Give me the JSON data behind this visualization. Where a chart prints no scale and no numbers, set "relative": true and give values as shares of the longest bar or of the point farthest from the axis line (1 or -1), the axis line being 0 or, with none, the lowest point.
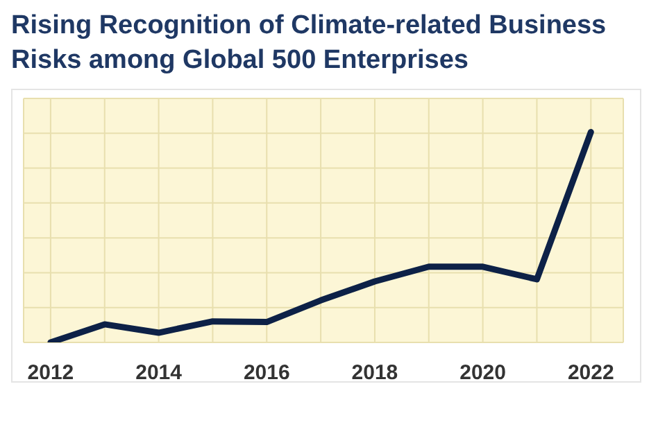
{
  "chart_data": {
    "type": "line",
    "title": "Rising Recognition of Climate-related Business Risks among Global 500 Enterprises",
    "relative": true,
    "x": [
      2012,
      2013,
      2014,
      2015,
      2016,
      2017,
      2018,
      2019,
      2020,
      2021,
      2022
    ],
    "series": [
      {
        "color": "#0d2147",
        "values": [
          0,
          0.086,
          0.046,
          0.1,
          0.097,
          0.2,
          0.29,
          0.36,
          0.36,
          0.3,
          1
        ]
      }
    ],
    "xlim": [
      2011.5,
      2022.6
    ],
    "xticks": [
      2012,
      {
        "value": 2013,
        "label": null
      },
      2014,
      {
        "value": 2015,
        "label": null
      },
      2016,
      {
        "value": 2017,
        "label": null
      },
      2018,
      {
        "value": 2019,
        "label": null
      },
      2020,
      {
        "value": 2021,
        "label": null
      },
      2022
    ],
    "grid": true,
    "marker": "none",
    "line_style": "solid",
    "legend": false
  }
}
